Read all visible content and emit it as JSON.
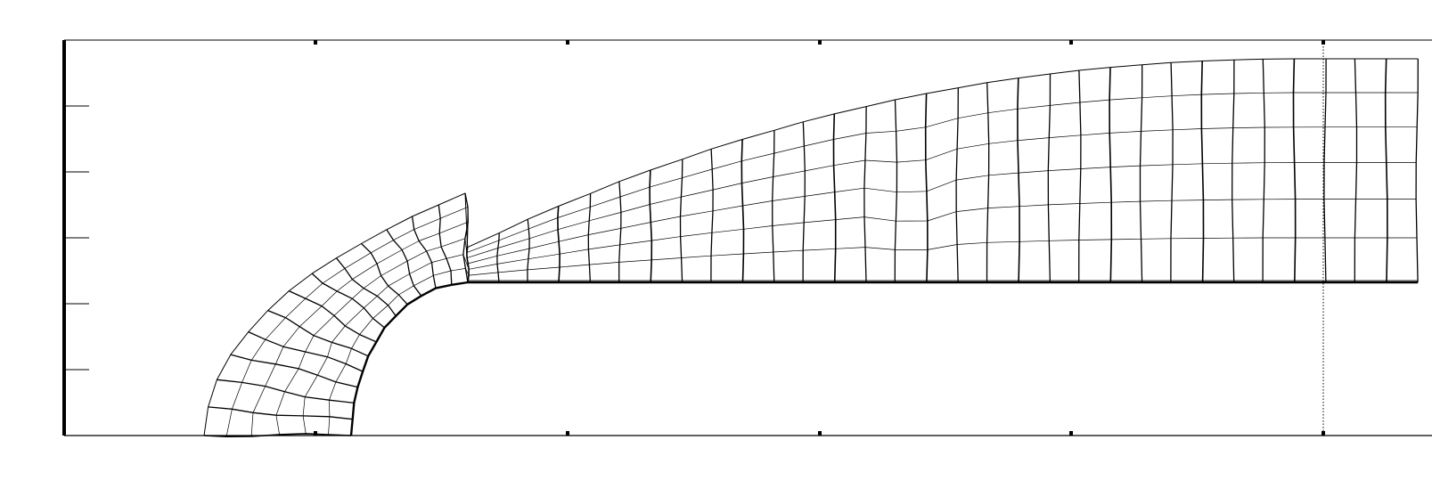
{
  "figure": {
    "type": "structured-mesh",
    "title": "",
    "x_axis_label": "",
    "y_axis_label": "",
    "tick_labels_shown": false,
    "dotted_reference_line": true,
    "stroke_color": "#000000",
    "background": "#ffffff"
  }
}
